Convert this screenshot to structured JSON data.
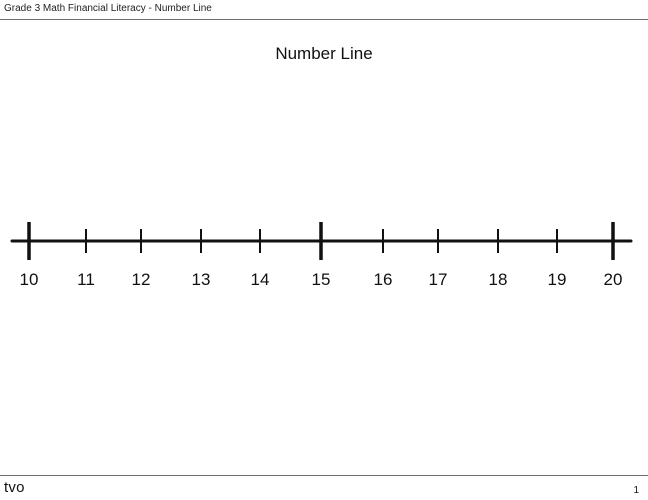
{
  "header": {
    "title": "Grade 3 Math Financial Literacy - Number Line"
  },
  "main": {
    "title": "Number Line"
  },
  "number_line": {
    "start": 10,
    "end": 20,
    "labels": [
      "10",
      "11",
      "12",
      "13",
      "14",
      "15",
      "16",
      "17",
      "18",
      "19",
      "20"
    ],
    "major_ticks": [
      10,
      15,
      20
    ],
    "line_color": "#111111"
  },
  "footer": {
    "logo": "tvo",
    "page_number": "1"
  }
}
